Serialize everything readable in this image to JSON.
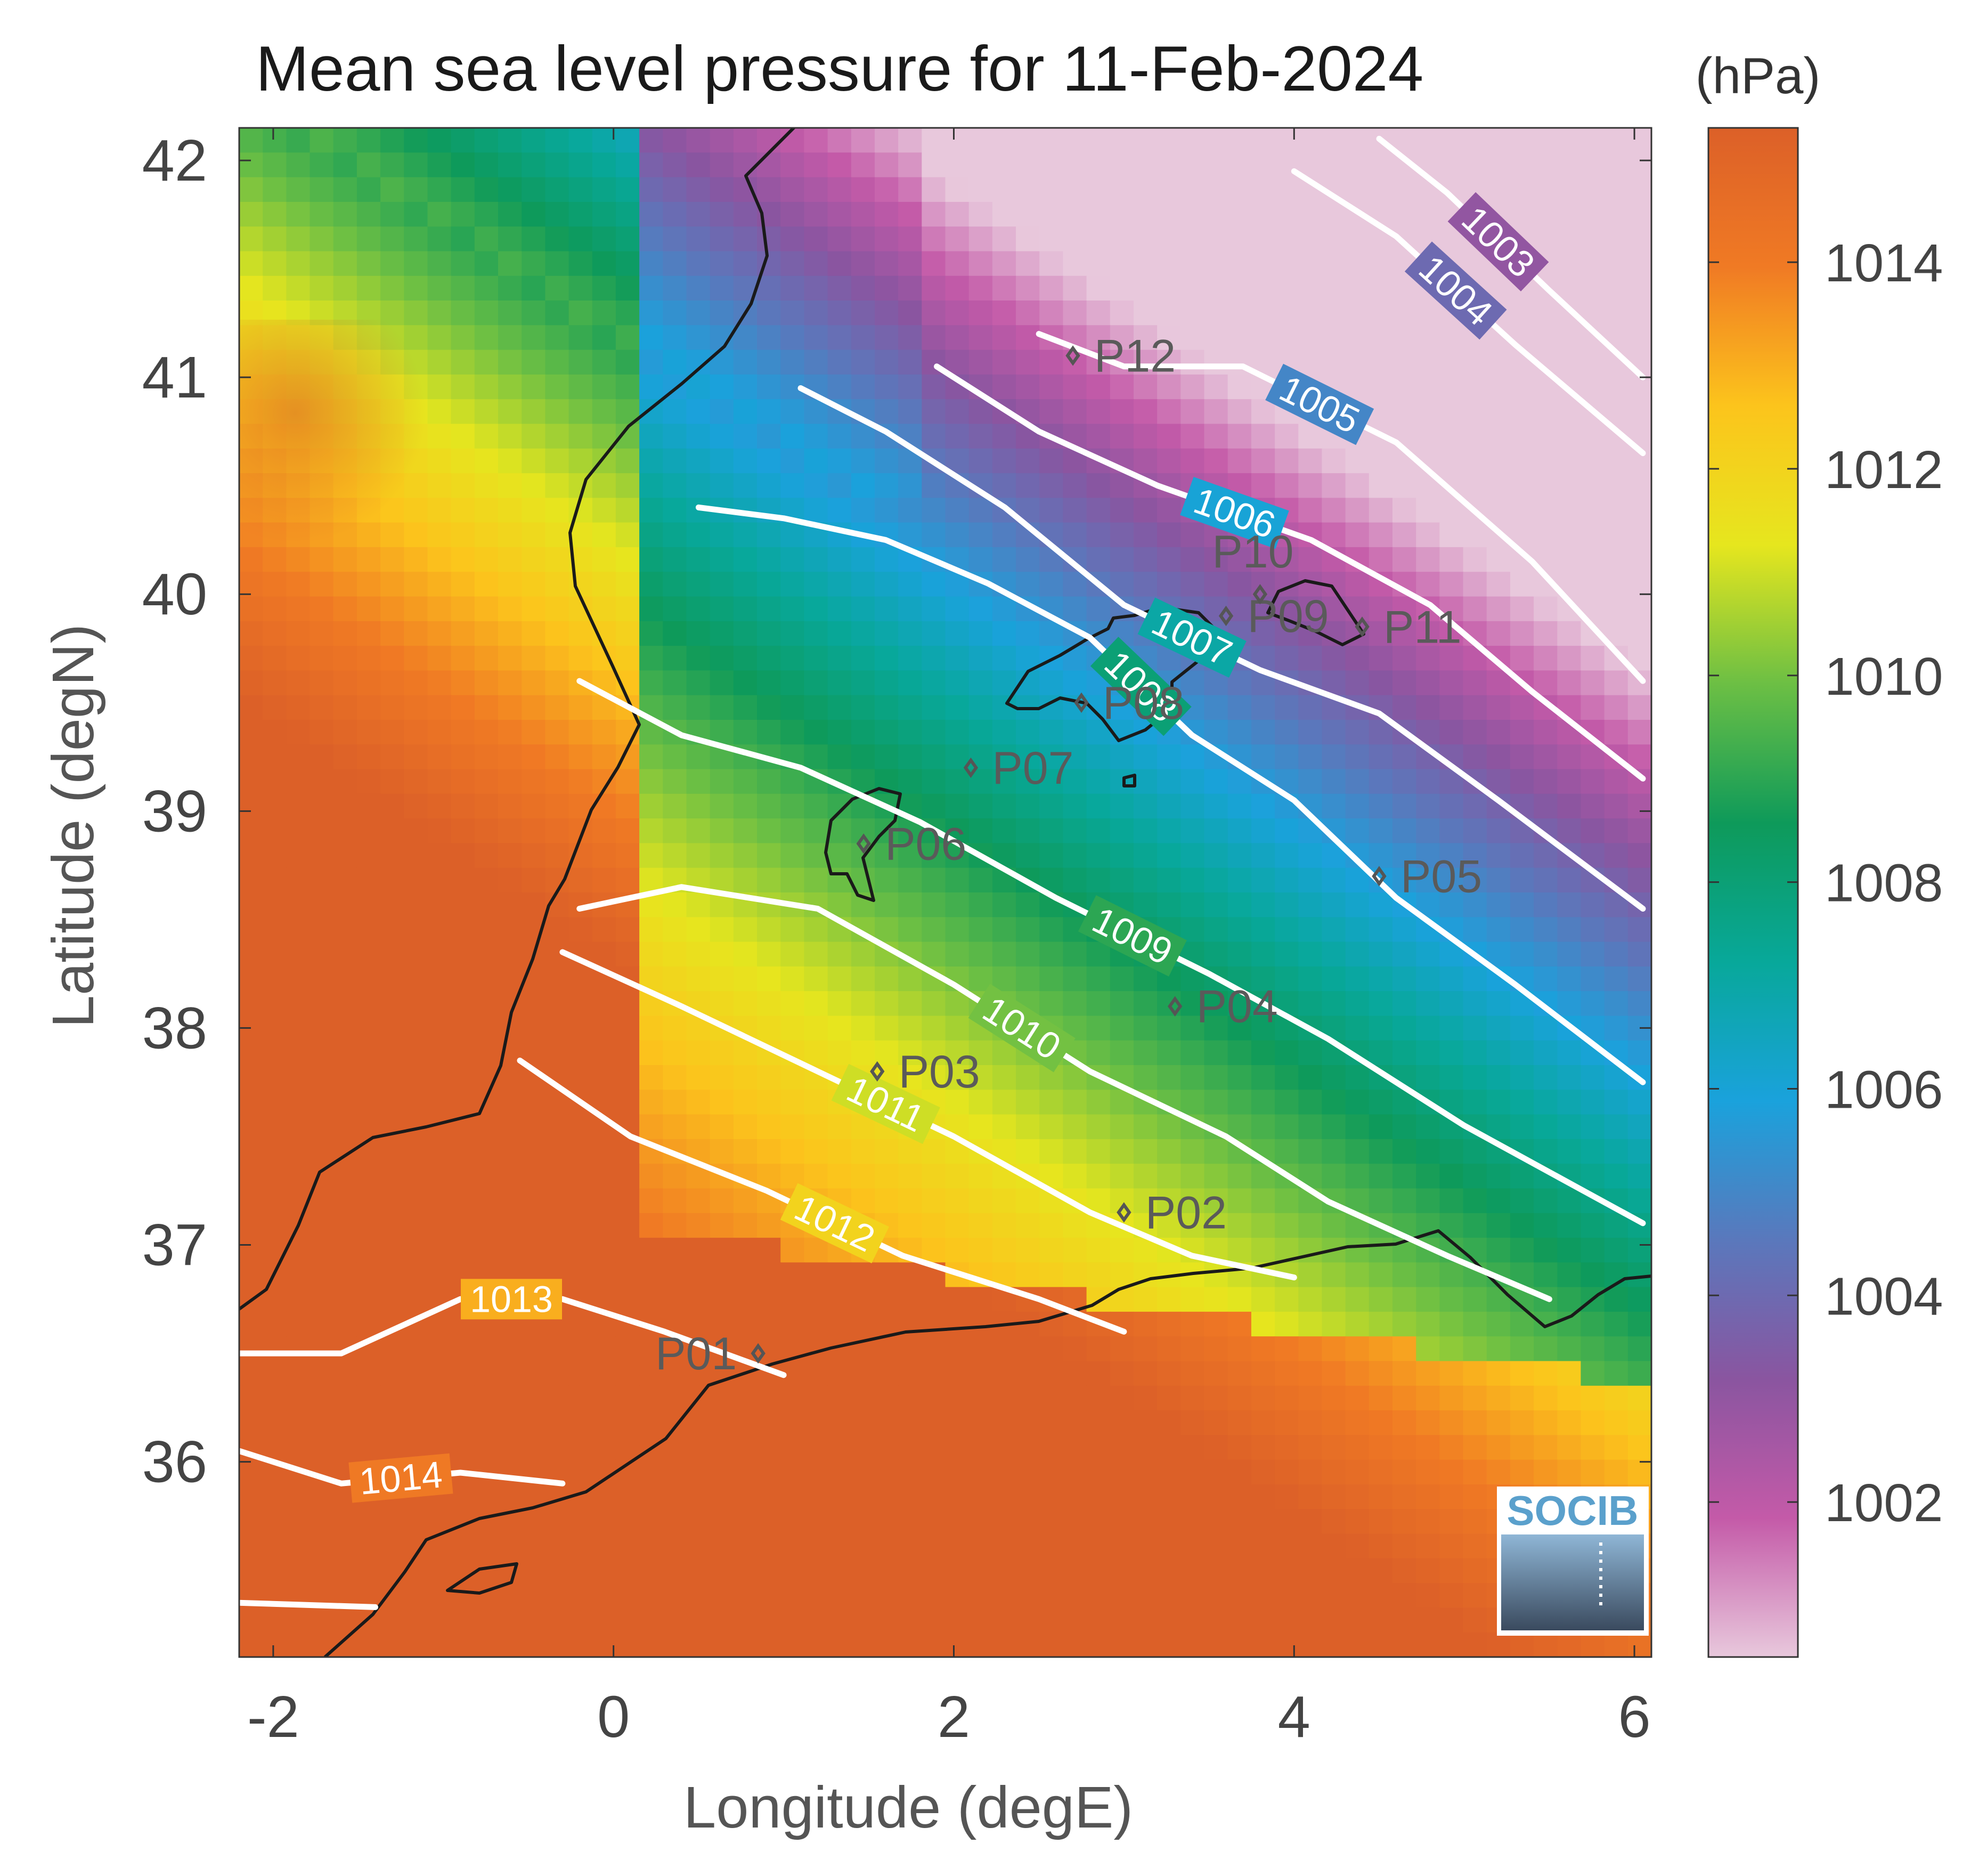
{
  "chart_data": {
    "type": "heatmap",
    "title": "Mean sea level pressure for 11-Feb-2024",
    "xlabel": "Longitude (degE)",
    "ylabel": "Latitude (degN)",
    "xlim": [
      -2.2,
      6.1
    ],
    "ylim": [
      35.1,
      42.15
    ],
    "xticks": [
      -2,
      0,
      2,
      4,
      6
    ],
    "yticks": [
      36,
      37,
      38,
      39,
      40,
      41,
      42
    ],
    "colorbar": {
      "unit_label": "(hPa)",
      "range": [
        1000.5,
        1015.3
      ],
      "ticks": [
        1002,
        1004,
        1006,
        1008,
        1010,
        1012,
        1014
      ],
      "colors": [
        "#e8c8dc",
        "#c45aa8",
        "#8a55a0",
        "#5a78bc",
        "#1aa2dc",
        "#08a89a",
        "#0e9a5a",
        "#6cbf44",
        "#e6e61e",
        "#fcc41c",
        "#f07a24",
        "#dc6028"
      ]
    },
    "contours": [
      {
        "level": 1003,
        "label": "1003",
        "points": [
          [
            4.5,
            42.1
          ],
          [
            4.9,
            41.85
          ],
          [
            5.5,
            41.4
          ],
          [
            6.05,
            41.0
          ]
        ]
      },
      {
        "level": 1004,
        "label": "1004",
        "points": [
          [
            4.0,
            41.95
          ],
          [
            4.6,
            41.65
          ],
          [
            5.3,
            41.15
          ],
          [
            6.05,
            40.65
          ]
        ]
      },
      {
        "level": 1005,
        "label": "1005",
        "points": [
          [
            2.5,
            41.2
          ],
          [
            3.0,
            41.05
          ],
          [
            3.7,
            41.05
          ],
          [
            4.6,
            40.7
          ],
          [
            5.4,
            40.15
          ],
          [
            6.05,
            39.6
          ]
        ]
      },
      {
        "level": 1006,
        "label": "1006",
        "points": [
          [
            1.9,
            41.05
          ],
          [
            2.5,
            40.75
          ],
          [
            3.2,
            40.5
          ],
          [
            4.1,
            40.25
          ],
          [
            4.8,
            39.95
          ],
          [
            5.4,
            39.55
          ],
          [
            6.05,
            39.15
          ]
        ]
      },
      {
        "level": 1007,
        "label": "1007",
        "points": [
          [
            1.1,
            40.95
          ],
          [
            1.6,
            40.75
          ],
          [
            2.3,
            40.4
          ],
          [
            3.0,
            39.95
          ],
          [
            3.8,
            39.65
          ],
          [
            4.5,
            39.45
          ],
          [
            5.2,
            39.05
          ],
          [
            6.05,
            38.55
          ]
        ]
      },
      {
        "level": 1008,
        "label": "1008",
        "points": [
          [
            0.5,
            40.4
          ],
          [
            1.0,
            40.35
          ],
          [
            1.6,
            40.25
          ],
          [
            2.2,
            40.05
          ],
          [
            2.8,
            39.8
          ],
          [
            3.4,
            39.35
          ],
          [
            4.0,
            39.05
          ],
          [
            4.6,
            38.6
          ],
          [
            5.3,
            38.2
          ],
          [
            6.05,
            37.75
          ]
        ]
      },
      {
        "level": 1009,
        "label": "1009",
        "points": [
          [
            -0.2,
            39.6
          ],
          [
            0.4,
            39.35
          ],
          [
            1.1,
            39.2
          ],
          [
            1.8,
            38.95
          ],
          [
            2.6,
            38.6
          ],
          [
            3.5,
            38.25
          ],
          [
            4.2,
            37.95
          ],
          [
            5.0,
            37.55
          ],
          [
            5.7,
            37.25
          ],
          [
            6.05,
            37.1
          ]
        ]
      },
      {
        "level": 1010,
        "label": "1010",
        "points": [
          [
            -0.2,
            38.55
          ],
          [
            0.4,
            38.65
          ],
          [
            1.2,
            38.55
          ],
          [
            2.0,
            38.2
          ],
          [
            2.8,
            37.8
          ],
          [
            3.6,
            37.5
          ],
          [
            4.2,
            37.2
          ],
          [
            4.9,
            36.95
          ],
          [
            5.5,
            36.75
          ]
        ]
      },
      {
        "level": 1011,
        "label": "1011",
        "points": [
          [
            -0.3,
            38.35
          ],
          [
            0.4,
            38.1
          ],
          [
            1.2,
            37.8
          ],
          [
            2.0,
            37.5
          ],
          [
            2.8,
            37.15
          ],
          [
            3.4,
            36.95
          ],
          [
            4.0,
            36.85
          ]
        ]
      },
      {
        "level": 1012,
        "label": "1012",
        "points": [
          [
            -0.55,
            37.85
          ],
          [
            0.1,
            37.5
          ],
          [
            0.9,
            37.25
          ],
          [
            1.7,
            36.95
          ],
          [
            2.5,
            36.75
          ],
          [
            3.0,
            36.6
          ]
        ]
      },
      {
        "level": 1013,
        "label": "1013",
        "points": [
          [
            -2.2,
            36.5
          ],
          [
            -1.6,
            36.5
          ],
          [
            -0.9,
            36.75
          ],
          [
            -0.3,
            36.75
          ],
          [
            0.3,
            36.6
          ],
          [
            1.0,
            36.4
          ]
        ]
      },
      {
        "level": 1014,
        "label": "1014",
        "points": [
          [
            -2.2,
            36.05
          ],
          [
            -1.6,
            35.9
          ],
          [
            -0.9,
            35.95
          ],
          [
            -0.3,
            35.9
          ]
        ]
      },
      {
        "level": 1014.5,
        "label": "",
        "points": [
          [
            -2.2,
            35.35
          ],
          [
            -1.4,
            35.33
          ]
        ]
      }
    ],
    "stations": [
      {
        "name": "P01",
        "lon": 0.85,
        "lat": 36.5
      },
      {
        "name": "P02",
        "lon": 3.0,
        "lat": 37.15
      },
      {
        "name": "P03",
        "lon": 1.55,
        "lat": 37.8
      },
      {
        "name": "P04",
        "lon": 3.3,
        "lat": 38.1
      },
      {
        "name": "P05",
        "lon": 4.5,
        "lat": 38.7
      },
      {
        "name": "P06",
        "lon": 1.47,
        "lat": 38.85
      },
      {
        "name": "P07",
        "lon": 2.1,
        "lat": 39.2
      },
      {
        "name": "P08",
        "lon": 2.75,
        "lat": 39.5
      },
      {
        "name": "P09",
        "lon": 3.6,
        "lat": 39.9
      },
      {
        "name": "P10",
        "lon": 3.8,
        "lat": 40.0
      },
      {
        "name": "P11",
        "lon": 4.4,
        "lat": 39.85
      },
      {
        "name": "P12",
        "lon": 2.7,
        "lat": 41.1
      }
    ]
  },
  "logo": {
    "text": "SOCIB"
  }
}
